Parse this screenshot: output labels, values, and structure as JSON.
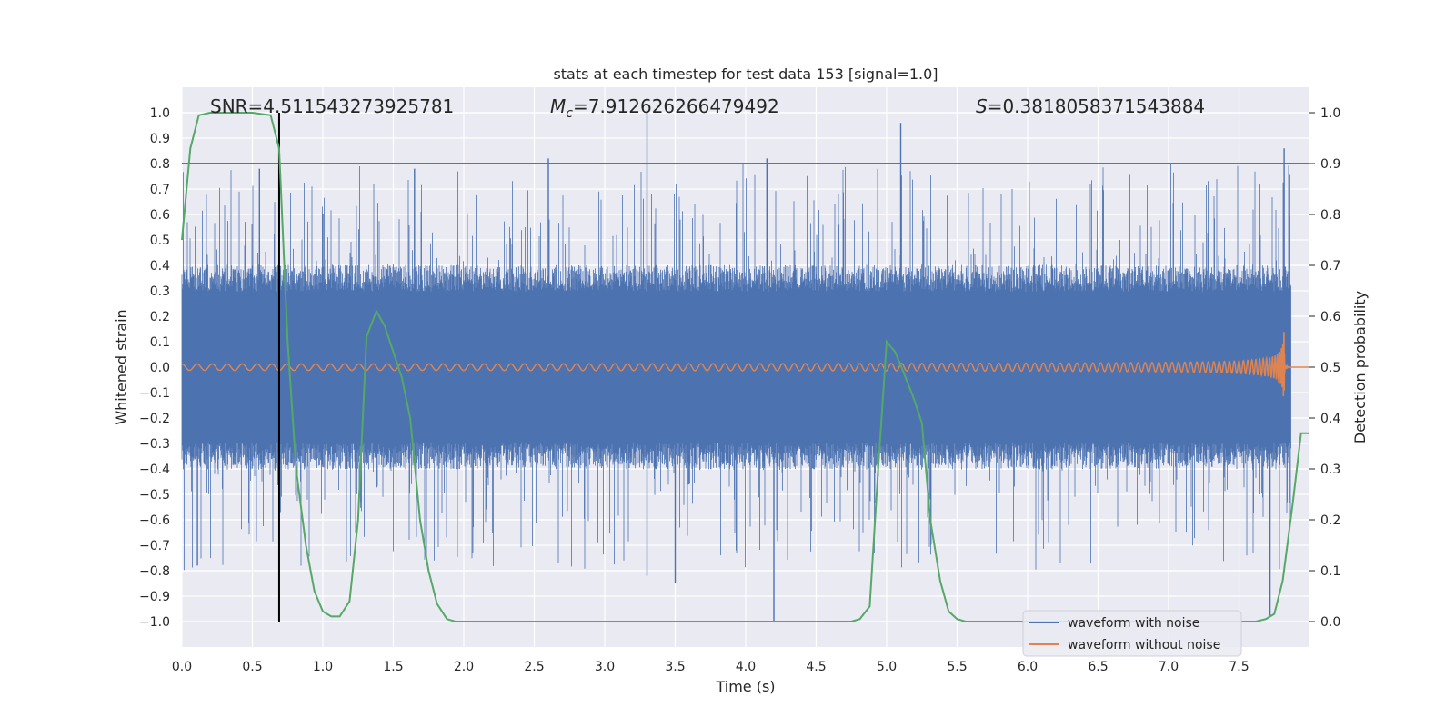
{
  "chart_data": {
    "type": "line",
    "title": "stats at each timestep for test data 153 [signal=1.0]",
    "xlabel": "Time (s)",
    "ylabel_left": "Whitened strain",
    "ylabel_right": "Detection probability",
    "xlim": [
      0.0,
      8.0
    ],
    "ylim_left": [
      -1.1,
      1.1
    ],
    "ylim_right": [
      -0.05,
      1.05
    ],
    "x_ticks": [
      "0.0",
      "0.5",
      "1.0",
      "1.5",
      "2.0",
      "2.5",
      "3.0",
      "3.5",
      "4.0",
      "4.5",
      "5.0",
      "5.5",
      "6.0",
      "6.5",
      "7.0",
      "7.5"
    ],
    "y_left_ticks": [
      "1.0",
      "0.9",
      "0.8",
      "0.7",
      "0.6",
      "0.5",
      "0.4",
      "0.3",
      "0.2",
      "0.1",
      "0.0",
      "−0.1",
      "−0.2",
      "−0.3",
      "−0.4",
      "−0.5",
      "−0.6",
      "−0.7",
      "−0.8",
      "−0.9",
      "−1.0"
    ],
    "y_right_ticks": [
      "1.0",
      "0.9",
      "0.8",
      "0.7",
      "0.6",
      "0.5",
      "0.4",
      "0.3",
      "0.2",
      "0.1",
      "0.0"
    ],
    "annotations": {
      "snr": "SNR=4.511543273925781",
      "mc_symbol": "M",
      "mc_subscript": "c",
      "mc_value": "=7.912626266479492",
      "s_symbol": "S",
      "s_value": "=0.3818058371543884"
    },
    "threshold_line": {
      "value": 0.9,
      "axis": "right"
    },
    "marker_line": {
      "x": 0.69,
      "from": -1.0,
      "to": 1.0
    },
    "noise_band": {
      "t_start": 0.0,
      "t_end": 7.87,
      "typical_amplitude": 0.35,
      "peak_amplitude": 1.0
    },
    "chirp": {
      "t_start": 0.0,
      "t_merger": 7.82,
      "t_end": 7.87,
      "initial_amplitude": 0.01,
      "peak_amplitude": 0.18
    },
    "series": [
      {
        "name": "waveform with noise",
        "color": "#4c72b0",
        "axis": "left",
        "kind": "noise"
      },
      {
        "name": "waveform without noise",
        "color": "#dd8452",
        "axis": "left",
        "kind": "chirp"
      },
      {
        "name": "detection probability",
        "color": "#55a868",
        "axis": "right",
        "x": [
          0.0,
          0.06,
          0.12,
          0.2,
          0.3,
          0.4,
          0.5,
          0.63,
          0.69,
          0.75,
          0.81,
          0.88,
          0.94,
          1.0,
          1.06,
          1.12,
          1.19,
          1.25,
          1.31,
          1.38,
          1.44,
          1.5,
          1.56,
          1.62,
          1.69,
          1.75,
          1.81,
          1.88,
          1.94,
          2.0,
          3.0,
          4.0,
          4.5,
          4.75,
          4.81,
          4.88,
          4.94,
          5.0,
          5.06,
          5.12,
          5.19,
          5.25,
          5.31,
          5.38,
          5.44,
          5.5,
          5.56,
          6.0,
          7.0,
          7.5,
          7.62,
          7.69,
          7.75,
          7.81,
          7.88,
          7.94,
          8.0
        ],
        "y": [
          0.75,
          0.93,
          0.995,
          1.0,
          1.0,
          1.0,
          1.0,
          0.995,
          0.93,
          0.55,
          0.3,
          0.15,
          0.06,
          0.02,
          0.01,
          0.01,
          0.04,
          0.2,
          0.56,
          0.61,
          0.58,
          0.53,
          0.48,
          0.4,
          0.2,
          0.1,
          0.035,
          0.005,
          0.0,
          0.0,
          0.0,
          0.0,
          0.0,
          0.0,
          0.005,
          0.03,
          0.3,
          0.55,
          0.53,
          0.49,
          0.44,
          0.39,
          0.2,
          0.08,
          0.02,
          0.005,
          0.0,
          0.0,
          0.0,
          0.0,
          0.0,
          0.005,
          0.015,
          0.08,
          0.23,
          0.37,
          0.37
        ]
      }
    ],
    "legend": {
      "position": "bottom-right",
      "entries": [
        "waveform with noise",
        "waveform without noise"
      ]
    }
  },
  "colors": {
    "background": "#eaeaf2",
    "grid": "#ffffff",
    "noise": "#4c72b0",
    "chirp": "#dd8452",
    "probability": "#55a868",
    "threshold": "#c44e52",
    "marker": "#000000"
  }
}
